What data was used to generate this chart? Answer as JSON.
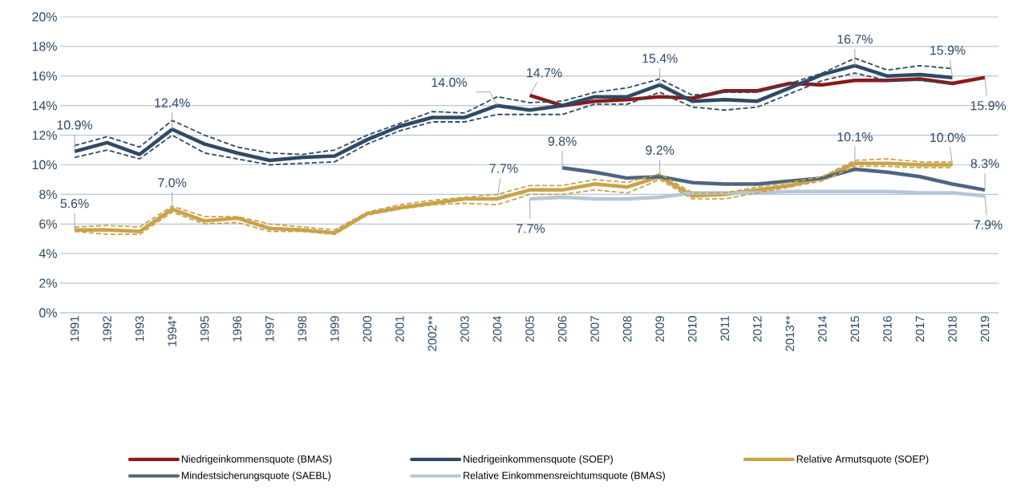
{
  "chart_data": {
    "type": "line",
    "categories": [
      "1991",
      "1992",
      "1993",
      "1994*",
      "1995",
      "1996",
      "1997",
      "1998",
      "1999",
      "2000",
      "2001",
      "2002**",
      "2003",
      "2004",
      "2005",
      "2006",
      "2007",
      "2008",
      "2009",
      "2010",
      "2011",
      "2012",
      "2013**",
      "2014",
      "2015",
      "2016",
      "2017",
      "2018",
      "2019"
    ],
    "series": [
      {
        "color": "#2e4a66",
        "line_style": "dashed",
        "values": [
          10.5,
          11.0,
          10.4,
          12.0,
          10.8,
          10.4,
          10.0,
          10.1,
          10.2,
          11.4,
          12.3,
          12.9,
          12.9,
          13.4,
          13.4,
          13.4,
          14.1,
          14.1,
          14.9,
          13.9,
          13.7,
          13.9,
          14.8,
          15.7,
          16.2,
          15.7,
          15.7,
          15.5,
          null
        ]
      },
      {
        "color": "#2e4a66",
        "line_style": "dashed",
        "values": [
          11.3,
          11.9,
          11.2,
          13.0,
          12.0,
          11.2,
          10.8,
          10.7,
          11.0,
          12.0,
          12.8,
          13.6,
          13.5,
          14.6,
          14.2,
          14.3,
          14.9,
          15.2,
          15.8,
          14.7,
          14.9,
          14.9,
          15.5,
          16.2,
          17.2,
          16.4,
          16.7,
          16.5,
          null
        ]
      },
      {
        "color": "#c9a24a",
        "line_style": "dashed",
        "values": [
          5.5,
          5.3,
          5.3,
          6.8,
          6.0,
          6.1,
          5.5,
          5.5,
          5.3,
          6.6,
          7.0,
          7.3,
          7.4,
          7.3,
          8.0,
          8.0,
          8.3,
          8.1,
          9.0,
          7.7,
          7.7,
          8.1,
          8.5,
          8.9,
          9.9,
          9.9,
          9.8,
          9.8,
          null
        ]
      },
      {
        "color": "#c9a24a",
        "line_style": "dashed",
        "values": [
          5.8,
          5.9,
          5.8,
          7.2,
          6.5,
          6.5,
          6.0,
          5.8,
          5.6,
          6.8,
          7.3,
          7.6,
          7.8,
          8.0,
          8.6,
          8.6,
          9.0,
          8.8,
          9.4,
          8.1,
          8.1,
          8.5,
          8.8,
          9.2,
          10.3,
          10.4,
          10.2,
          10.2,
          null
        ]
      },
      {
        "name": "Niedrigeinkommensquote (BMAS)",
        "color": "#8b1a1a",
        "values": [
          null,
          null,
          null,
          null,
          null,
          null,
          null,
          null,
          null,
          null,
          null,
          null,
          null,
          null,
          14.7,
          14.0,
          14.3,
          14.4,
          14.6,
          14.5,
          15.0,
          15.0,
          15.5,
          15.4,
          15.7,
          15.7,
          15.8,
          15.5,
          15.9
        ],
        "value_labels": [
          null,
          null,
          null,
          null,
          null,
          null,
          null,
          null,
          null,
          null,
          null,
          null,
          null,
          null,
          "14.7%",
          null,
          null,
          null,
          null,
          null,
          null,
          null,
          null,
          null,
          null,
          null,
          null,
          null,
          "15.9%"
        ]
      },
      {
        "name": "Niedrigeinkommensquote (SOEP)",
        "color": "#2e4a66",
        "values": [
          10.9,
          11.5,
          10.7,
          12.4,
          11.4,
          10.8,
          10.3,
          10.5,
          10.6,
          11.7,
          12.6,
          13.2,
          13.2,
          14.0,
          13.7,
          14.0,
          14.6,
          14.6,
          15.4,
          14.3,
          14.4,
          14.3,
          15.2,
          16.1,
          16.7,
          16.0,
          16.1,
          15.9,
          null
        ],
        "value_labels": [
          "10.9%",
          null,
          null,
          "12.4%",
          null,
          null,
          null,
          null,
          null,
          null,
          null,
          null,
          null,
          "14.0%",
          null,
          null,
          null,
          null,
          "15.4%",
          null,
          null,
          null,
          null,
          null,
          "16.7%",
          null,
          null,
          "15.9%",
          null
        ]
      },
      {
        "name": "Relative Armutsquote (SOEP)",
        "color": "#c9a24a",
        "values": [
          5.6,
          5.6,
          5.5,
          7.0,
          6.2,
          6.4,
          5.7,
          5.6,
          5.4,
          6.7,
          7.1,
          7.4,
          7.7,
          7.7,
          8.3,
          8.3,
          8.7,
          8.5,
          9.2,
          7.9,
          8.0,
          8.3,
          8.6,
          9.1,
          10.1,
          10.1,
          10.0,
          10.0,
          null
        ],
        "value_labels": [
          "5.6%",
          null,
          null,
          "7.0%",
          null,
          null,
          null,
          null,
          null,
          null,
          null,
          null,
          null,
          "7.7%",
          null,
          null,
          null,
          null,
          null,
          null,
          null,
          null,
          null,
          null,
          "10.1%",
          null,
          null,
          "10.0%",
          null
        ]
      },
      {
        "name": "Mindestsicherungsquote (SAEBL)",
        "color": "#4d6580",
        "values": [
          null,
          null,
          null,
          null,
          null,
          null,
          null,
          null,
          null,
          null,
          null,
          null,
          null,
          null,
          null,
          9.8,
          9.5,
          9.1,
          9.2,
          8.8,
          8.7,
          8.7,
          8.9,
          9.1,
          9.7,
          9.5,
          9.2,
          8.7,
          8.3
        ],
        "value_labels": [
          null,
          null,
          null,
          null,
          null,
          null,
          null,
          null,
          null,
          null,
          null,
          null,
          null,
          null,
          null,
          "9.8%",
          null,
          null,
          "9.2%",
          null,
          null,
          null,
          null,
          null,
          null,
          null,
          null,
          null,
          "8.3%"
        ]
      },
      {
        "name": "Relative Einkommensreichtumsquote (BMAS)",
        "color": "#b5c7d6",
        "values": [
          null,
          null,
          null,
          null,
          null,
          null,
          null,
          null,
          null,
          null,
          null,
          null,
          null,
          null,
          7.7,
          7.8,
          7.7,
          7.7,
          7.8,
          8.1,
          8.1,
          8.1,
          8.2,
          8.2,
          8.2,
          8.2,
          8.1,
          8.1,
          7.9
        ],
        "value_labels": [
          null,
          null,
          null,
          null,
          null,
          null,
          null,
          null,
          null,
          null,
          null,
          null,
          null,
          null,
          "7.7%",
          null,
          null,
          null,
          null,
          null,
          null,
          null,
          null,
          null,
          null,
          null,
          null,
          null,
          "7.9%"
        ]
      }
    ],
    "ylim": [
      0,
      20
    ],
    "yticks": [
      {
        "value": 0,
        "label": "0%"
      },
      {
        "value": 2,
        "label": "2%"
      },
      {
        "value": 4,
        "label": "4%"
      },
      {
        "value": 6,
        "label": "6%"
      },
      {
        "value": 8,
        "label": "8%"
      },
      {
        "value": 10,
        "label": "10%"
      },
      {
        "value": 12,
        "label": "12%"
      },
      {
        "value": 14,
        "label": "14%"
      },
      {
        "value": 16,
        "label": "16%"
      },
      {
        "value": 18,
        "label": "18%"
      },
      {
        "value": 20,
        "label": "20%"
      }
    ],
    "grid": "y",
    "legend": "bottom",
    "line_style": "solid",
    "marker": "none"
  }
}
